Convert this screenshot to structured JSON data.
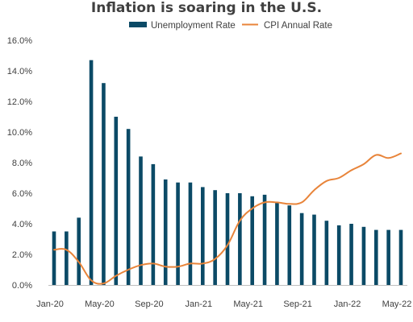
{
  "chart_data": {
    "type": "bar",
    "title": "Inflation is soaring in the U.S.",
    "xlabel": "",
    "ylabel": "",
    "categories": [
      "Jan-20",
      "Feb-20",
      "Mar-20",
      "Apr-20",
      "May-20",
      "Jun-20",
      "Jul-20",
      "Aug-20",
      "Sep-20",
      "Oct-20",
      "Nov-20",
      "Dec-20",
      "Jan-21",
      "Feb-21",
      "Mar-21",
      "Apr-21",
      "May-21",
      "Jun-21",
      "Jul-21",
      "Aug-21",
      "Sep-21",
      "Oct-21",
      "Nov-21",
      "Dec-21",
      "Jan-22",
      "Feb-22",
      "Mar-22",
      "Apr-22",
      "May-22"
    ],
    "x_tick_labels": [
      "Jan-20",
      "May-20",
      "Sep-20",
      "Jan-21",
      "May-21",
      "Sep-21",
      "Jan-22",
      "May-22"
    ],
    "x_tick_categories": [
      "Jan-20",
      "May-20",
      "Sep-20",
      "Jan-21",
      "May-21",
      "Sep-21",
      "Jan-22",
      "May-22"
    ],
    "ylim": [
      0,
      16
    ],
    "y_ticks": [
      "0.0%",
      "2.0%",
      "4.0%",
      "6.0%",
      "8.0%",
      "10.0%",
      "12.0%",
      "14.0%",
      "16.0%"
    ],
    "y_tick_values": [
      0,
      2,
      4,
      6,
      8,
      10,
      12,
      14,
      16
    ],
    "grid": false,
    "legend_position": "top-center",
    "series": [
      {
        "name": "Unemployment Rate",
        "type": "bar",
        "color": "#0b4a66",
        "values": [
          3.5,
          3.5,
          4.4,
          14.7,
          13.2,
          11.0,
          10.2,
          8.4,
          7.9,
          6.9,
          6.7,
          6.7,
          6.4,
          6.2,
          6.0,
          6.0,
          5.8,
          5.9,
          5.4,
          5.2,
          4.7,
          4.6,
          4.2,
          3.9,
          4.0,
          3.8,
          3.6,
          3.6,
          3.6
        ]
      },
      {
        "name": "CPI Annual Rate",
        "type": "line",
        "color": "#e8843a",
        "x": [
          "Jan-20",
          "Feb-20",
          "Mar-20",
          "Apr-20",
          "May-20",
          "Jun-20",
          "Jul-20",
          "Aug-20",
          "Sep-20",
          "Oct-20",
          "Nov-20",
          "Dec-20",
          "Jan-21",
          "Feb-21",
          "Mar-21",
          "Apr-21",
          "May-21",
          "Jun-21",
          "Jul-21",
          "Aug-21",
          "Sep-21",
          "Oct-21",
          "Nov-21",
          "Dec-21",
          "Jan-22",
          "Feb-22",
          "Mar-22",
          "Apr-22",
          "May-22"
        ],
        "values": [
          2.3,
          2.3,
          1.5,
          0.3,
          0.1,
          0.6,
          1.0,
          1.3,
          1.4,
          1.2,
          1.2,
          1.4,
          1.4,
          1.7,
          2.6,
          4.2,
          5.0,
          5.4,
          5.4,
          5.3,
          5.4,
          6.2,
          6.8,
          7.0,
          7.5,
          7.9,
          8.5,
          8.3,
          8.6
        ]
      }
    ]
  }
}
